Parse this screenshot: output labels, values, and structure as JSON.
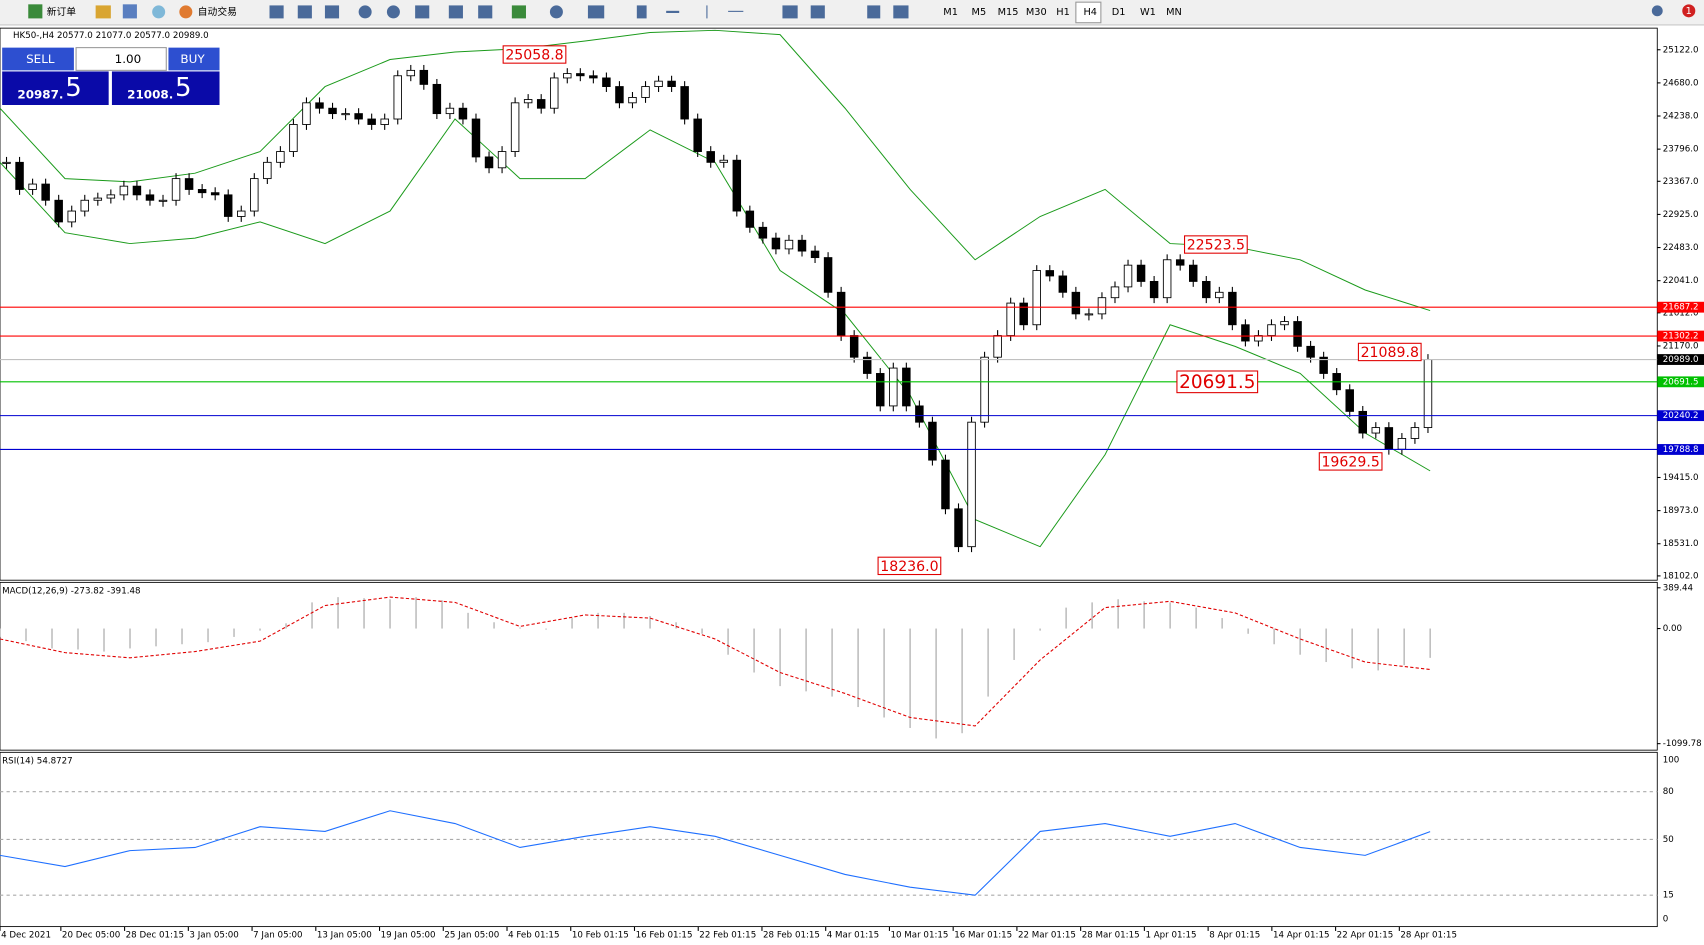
{
  "toolbar": {
    "new_order": "新订单",
    "auto_trade": "自动交易",
    "timeframes": [
      "M1",
      "M5",
      "M15",
      "M30",
      "H1",
      "H4",
      "D1",
      "W1",
      "MN"
    ],
    "notification": "1"
  },
  "header": "HK50-,H4  20577.0 21077.0 20577.0 20989.0",
  "trade": {
    "sell": "SELL",
    "buy": "BUY",
    "lot": "1.00",
    "bid_small": "20987.",
    "bid_big": "5",
    "ask_small": "21008.",
    "ask_big": "5"
  },
  "price_axis": {
    "ylim": [
      18059,
      25396
    ],
    "ticks": [
      {
        "value": 25122,
        "label": "25122.0"
      },
      {
        "value": 24680,
        "label": "24680.0"
      },
      {
        "value": 24238,
        "label": "24238.0"
      },
      {
        "value": 23796,
        "label": "23796.0"
      },
      {
        "value": 23367,
        "label": "23367.0"
      },
      {
        "value": 22925,
        "label": "22925.0"
      },
      {
        "value": 22483,
        "label": "22483.0"
      },
      {
        "value": 22041,
        "label": "22041.0"
      },
      {
        "value": 21612,
        "label": "21612.0"
      },
      {
        "value": 21170,
        "label": "21170.0"
      },
      {
        "value": 19415,
        "label": "19415.0"
      },
      {
        "value": 18973,
        "label": "18973.0"
      },
      {
        "value": 18531,
        "label": "18531.0"
      },
      {
        "value": 18102,
        "label": "18102.0"
      }
    ]
  },
  "levels": [
    {
      "value": 21687.2,
      "color": "#ff0000"
    },
    {
      "value": 21302.2,
      "color": "#ff0000"
    },
    {
      "value": 20989,
      "label": "20989.0",
      "color": "#000000"
    },
    {
      "value": 20691.5,
      "color": "#00c000"
    },
    {
      "value": 20240.2,
      "color": "#0000d0"
    },
    {
      "value": 19788.8,
      "color": "#0000d0"
    }
  ],
  "annotations": [
    {
      "value": 25058.8
    },
    {
      "value": 22523.5
    },
    {
      "value": 21089.8
    },
    {
      "value": 20691.5
    },
    {
      "value": 19629.5
    },
    {
      "value": 18236,
      "label": "18236.0"
    }
  ],
  "candles": {
    "closes": [
      23620,
      23258,
      23330,
      23114,
      22825,
      22970,
      23114,
      23143,
      23186,
      23302,
      23186,
      23114,
      23114,
      23403,
      23258,
      23215,
      23186,
      22898,
      22970,
      23403,
      23620,
      23764,
      24125,
      24414,
      24342,
      24270,
      24270,
      24198,
      24125,
      24198,
      24775,
      24847,
      24660,
      24270,
      24342,
      24198,
      23692,
      23547,
      23764,
      24414,
      24458,
      24342,
      24746,
      24804,
      24775,
      24746,
      24631,
      24414,
      24486,
      24631,
      24703,
      24631,
      24198,
      23764,
      23620,
      23648,
      22970,
      22753,
      22609,
      22465,
      22580,
      22436,
      22349,
      21886,
      21309,
      21020,
      20803,
      20370,
      20875,
      20370,
      20153,
      19647,
      18997,
      18492,
      20153,
      21020,
      21309,
      21742,
      21453,
      22176,
      22104,
      21886,
      21598,
      21598,
      21814,
      21958,
      22248,
      22031,
      21814,
      22320,
      22248,
      22031,
      21814,
      21886,
      21453,
      21236,
      21309,
      21453,
      21496,
      21165,
      21020,
      20803,
      20586,
      20297,
      20008,
      20081,
      19792,
      19936,
      20081,
      20989
    ]
  },
  "bands": {
    "color": "#1a9a1a",
    "upper": [
      24342,
      23403,
      23360,
      23475,
      23764,
      24631,
      24992,
      25093,
      25136,
      25238,
      25353,
      25382,
      25324,
      24342,
      23259,
      22320,
      22898,
      23259,
      22537,
      22493,
      22320,
      21916,
      21642
    ],
    "lower": [
      23620,
      22681,
      22537,
      22609,
      22825,
      22537,
      22970,
      24198,
      23403,
      23403,
      24053,
      23620,
      22176,
      21598,
      20514,
      18853,
      18492,
      19720,
      21453,
      21164,
      20803,
      20009,
      19503
    ]
  },
  "time_labels": [
    "4 Dec 2021",
    "20 Dec 05:00",
    "28 Dec 01:15",
    "3 Jan 05:00",
    "7 Jan 05:00",
    "13 Jan 05:00",
    "19 Jan 05:00",
    "25 Jan 05:00",
    "4 Feb 01:15",
    "10 Feb 01:15",
    "16 Feb 01:15",
    "22 Feb 01:15",
    "28 Feb 01:15",
    "4 Mar 01:15",
    "10 Mar 01:15",
    "16 Mar 01:15",
    "22 Mar 01:15",
    "28 Mar 01:15",
    "1 Apr 01:15",
    "8 Apr 01:15",
    "14 Apr 01:15",
    "22 Apr 01:15",
    "28 Apr 01:15"
  ],
  "macd": {
    "label": "MACD(12,26,9) -273.82 -391.48",
    "ylim": [
      -1099.78,
      389.44
    ],
    "ticks": [
      389.44,
      {
        "value": 0,
        "label": "0.00"
      },
      -1099.78
    ],
    "histogram": [
      -80,
      -120,
      -190,
      -200,
      -220,
      -190,
      -170,
      -150,
      -130,
      -80,
      -20,
      50,
      250,
      300,
      290,
      280,
      300,
      270,
      150,
      60,
      10,
      -10,
      100,
      150,
      150,
      120,
      60,
      -50,
      -250,
      -420,
      -550,
      -600,
      -650,
      -750,
      -850,
      -950,
      -1050,
      -1000,
      -650,
      -300,
      -20,
      200,
      250,
      280,
      260,
      250,
      200,
      100,
      -50,
      -150,
      -250,
      -320,
      -380,
      -400,
      -350,
      -280
    ],
    "signal": [
      -100,
      -230,
      -280,
      -220,
      -120,
      220,
      300,
      250,
      20,
      130,
      100,
      -100,
      -420,
      -620,
      -850,
      -930,
      -300,
      200,
      260,
      150,
      -100,
      -320,
      -391.48
    ]
  },
  "rsi": {
    "label": "RSI(14) 54.8727",
    "ylim": [
      0,
      100
    ],
    "ticks": [
      100,
      80,
      50,
      15,
      0
    ],
    "color": "#1e6fff",
    "values": [
      40,
      33,
      43,
      45,
      58,
      55,
      68,
      60,
      45,
      52,
      58,
      52,
      40,
      28,
      20,
      15,
      55,
      60,
      52,
      60,
      45,
      40,
      54.8727
    ]
  }
}
